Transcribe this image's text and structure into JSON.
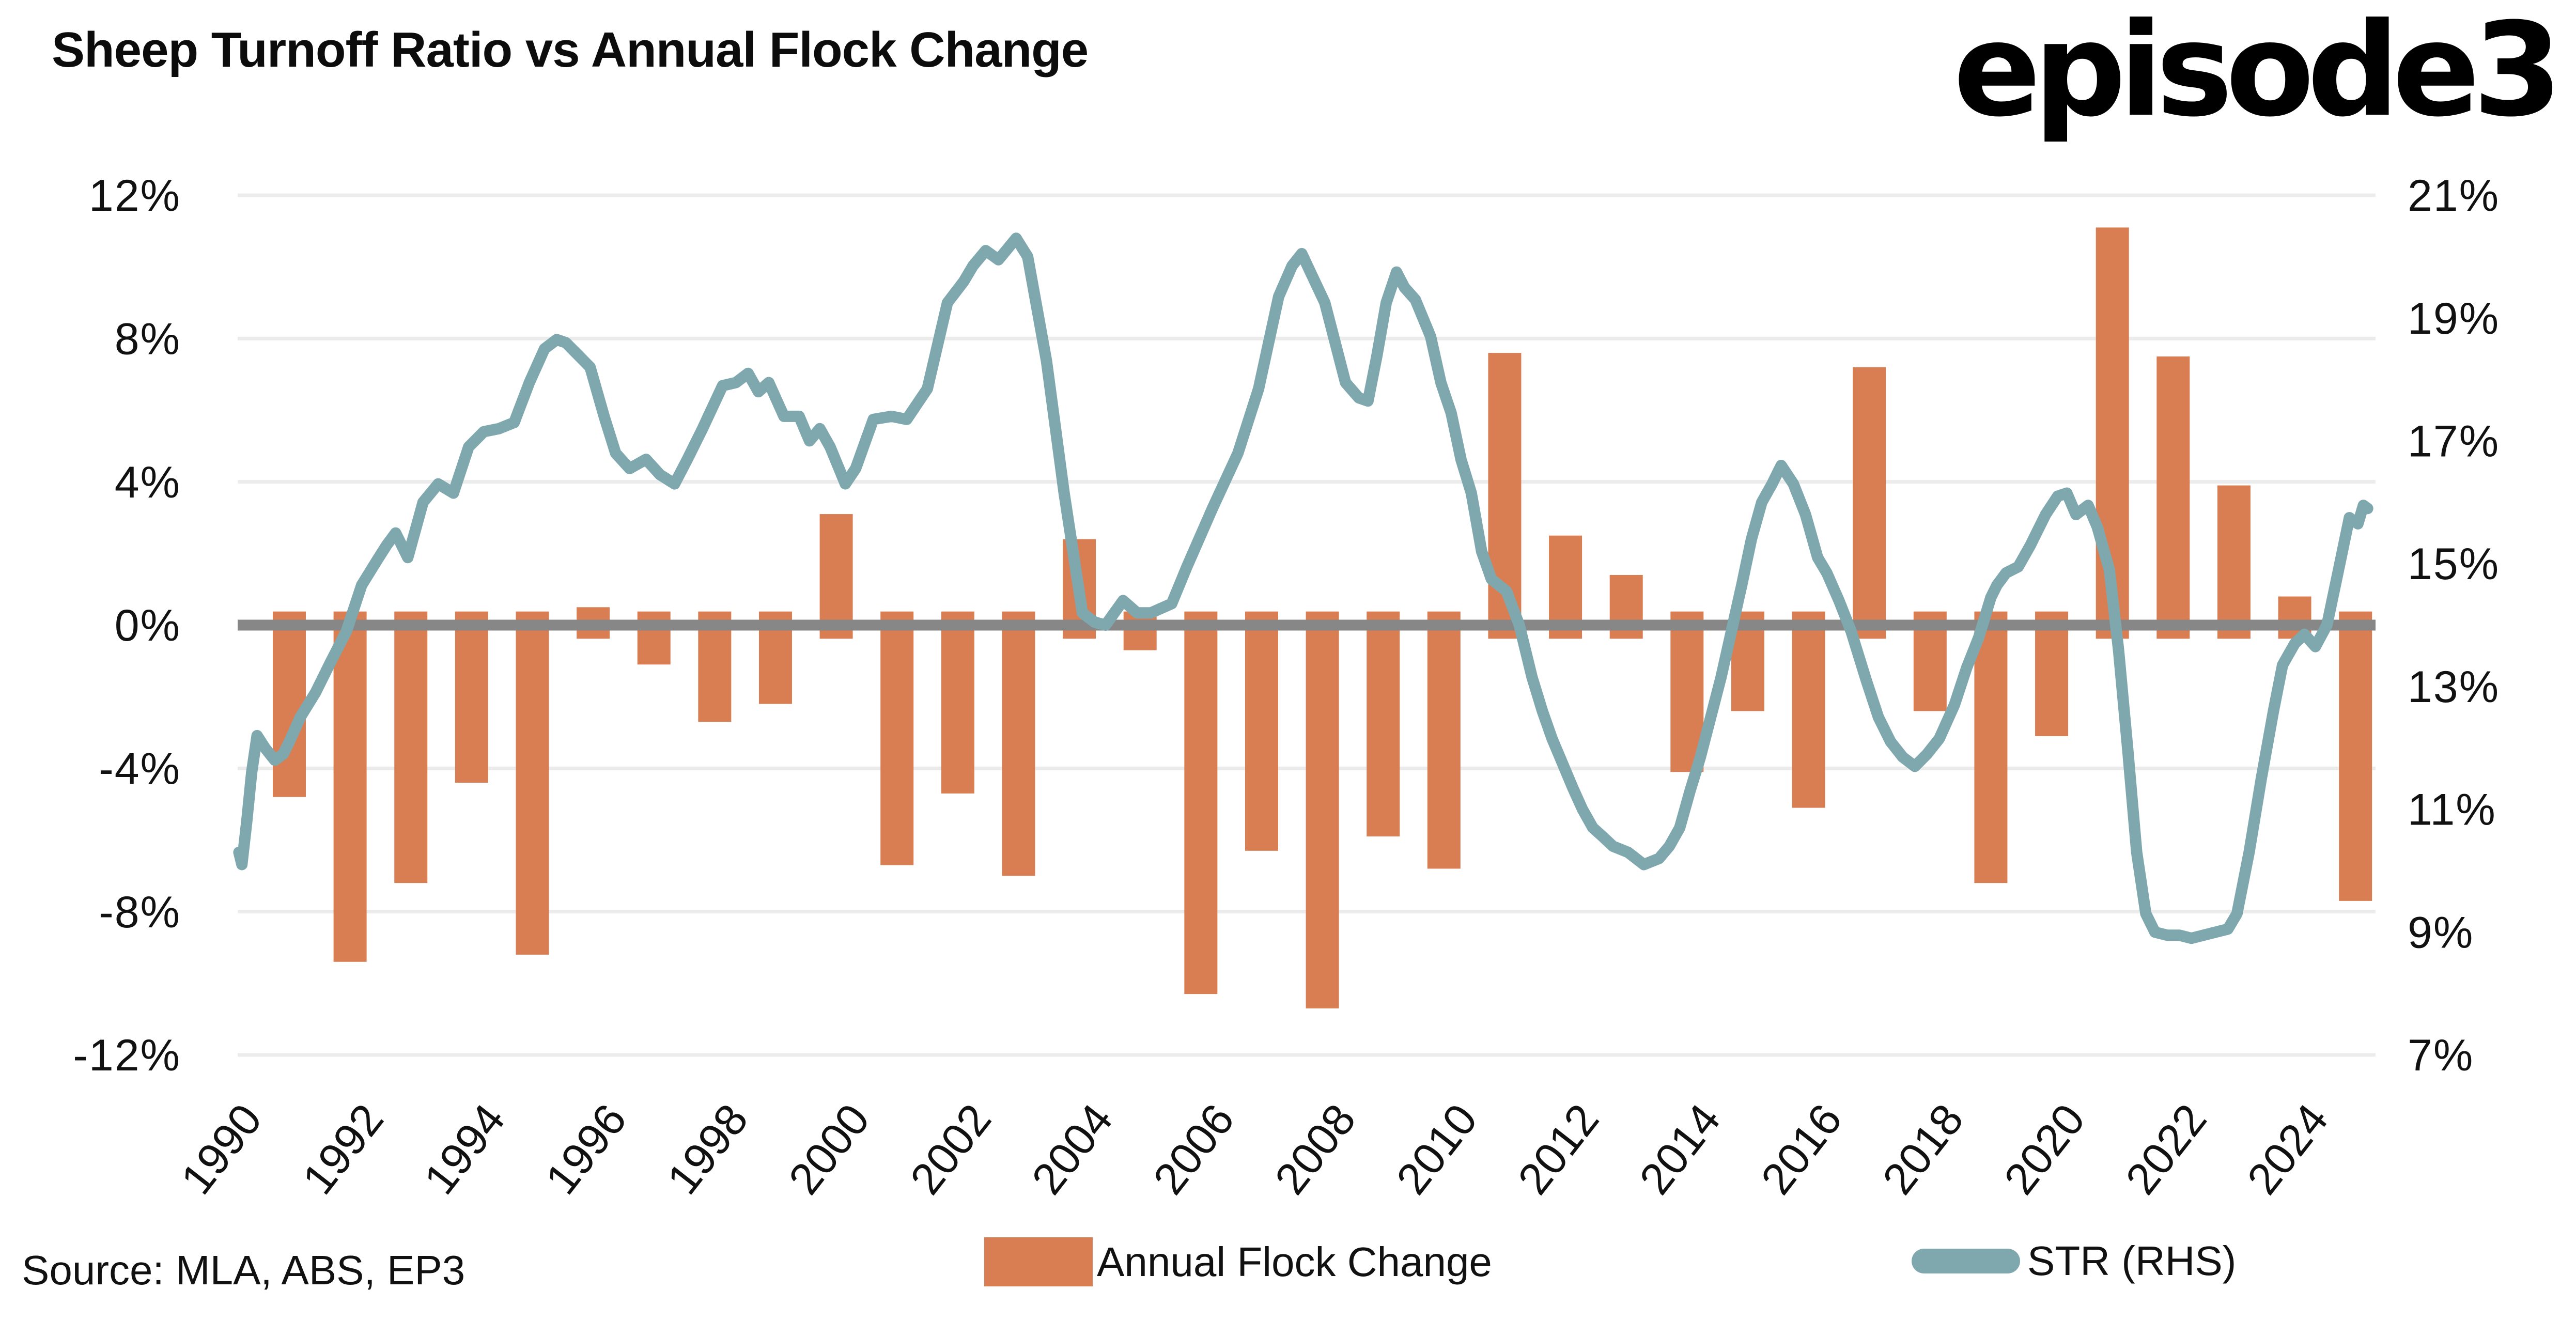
{
  "title": "Sheep Turnoff Ratio vs Annual Flock Change",
  "logo_text": "episode3",
  "source_text": "Source: MLA, ABS, EP3",
  "colors": {
    "bar": "#D97E52",
    "line": "#7FA8AE",
    "zero_line": "#878787",
    "gridline": "#ececec",
    "text": "#111111",
    "background": "#ffffff"
  },
  "legend": {
    "items": [
      {
        "label": "Annual Flock Change",
        "swatch": "bar-swatch",
        "color": "#D97E52"
      },
      {
        "label": "STR (RHS)",
        "swatch": "line-swatch",
        "color": "#7FA8AE"
      }
    ]
  },
  "chart_data": {
    "type": "combo-bar-line",
    "title": "Sheep Turnoff Ratio vs Annual Flock Change",
    "grid": "horizontal-only",
    "legend_position": "bottom",
    "left_axis": {
      "label": "Annual Flock Change",
      "min": -12,
      "max": 12,
      "tick_values": [
        12,
        8,
        4,
        0,
        -4,
        -8,
        -12
      ],
      "tick_labels": [
        "12%",
        "8%",
        "4%",
        "0%",
        "-4%",
        "-8%",
        "-12%"
      ]
    },
    "right_axis": {
      "label": "STR (RHS)",
      "min": 7,
      "max": 21,
      "tick_values": [
        21,
        19,
        17,
        15,
        13,
        11,
        9,
        7
      ],
      "tick_labels": [
        "21%",
        "19%",
        "17%",
        "15%",
        "13%",
        "11%",
        "9%",
        "7%"
      ]
    },
    "x_axis": {
      "domain": [
        1989.15,
        2024.33
      ],
      "tick_years": [
        1990,
        1992,
        1994,
        1996,
        1998,
        2000,
        2002,
        2004,
        2006,
        2008,
        2010,
        2012,
        2014,
        2016,
        2018,
        2020,
        2022,
        2024
      ],
      "tick_offset": -0.42,
      "label_rotation_deg": -52
    },
    "series": [
      {
        "name": "Annual Flock Change",
        "type": "bar",
        "axis": "left",
        "unit": "%",
        "categories": [
          1990,
          1991,
          1992,
          1993,
          1994,
          1995,
          1996,
          1997,
          1998,
          1999,
          2000,
          2001,
          2002,
          2003,
          2004,
          2005,
          2006,
          2007,
          2008,
          2009,
          2010,
          2011,
          2012,
          2013,
          2014,
          2015,
          2016,
          2017,
          2018,
          2019,
          2020,
          2021,
          2022,
          2023,
          2024
        ],
        "values": [
          -4.8,
          -9.4,
          -7.2,
          -4.4,
          -9.2,
          0.5,
          -1.1,
          -2.7,
          -2.2,
          3.1,
          -6.7,
          -4.7,
          -7.0,
          2.4,
          -0.7,
          -10.3,
          -6.3,
          -10.7,
          -5.9,
          -6.8,
          7.6,
          2.5,
          1.4,
          -4.1,
          -2.4,
          -5.1,
          7.2,
          -2.4,
          -7.2,
          -3.1,
          11.1,
          7.5,
          3.9,
          0.8,
          -7.7
        ]
      },
      {
        "name": "STR (RHS)",
        "type": "line",
        "axis": "right",
        "unit": "%",
        "points": [
          [
            1989.17,
            10.3
          ],
          [
            1989.22,
            10.1
          ],
          [
            1989.3,
            10.8
          ],
          [
            1989.38,
            11.6
          ],
          [
            1989.47,
            12.2
          ],
          [
            1989.6,
            12.0
          ],
          [
            1989.76,
            11.8
          ],
          [
            1989.9,
            11.9
          ],
          [
            1990.0,
            12.1
          ],
          [
            1990.18,
            12.5
          ],
          [
            1990.43,
            12.9
          ],
          [
            1990.68,
            13.4
          ],
          [
            1990.94,
            13.9
          ],
          [
            1991.19,
            14.65
          ],
          [
            1991.44,
            15.05
          ],
          [
            1991.6,
            15.3
          ],
          [
            1991.75,
            15.5
          ],
          [
            1991.95,
            15.1
          ],
          [
            1992.2,
            16.0
          ],
          [
            1992.45,
            16.3
          ],
          [
            1992.7,
            16.15
          ],
          [
            1992.95,
            16.9
          ],
          [
            1993.2,
            17.15
          ],
          [
            1993.45,
            17.2
          ],
          [
            1993.7,
            17.3
          ],
          [
            1993.95,
            17.95
          ],
          [
            1994.2,
            18.5
          ],
          [
            1994.4,
            18.65
          ],
          [
            1994.55,
            18.6
          ],
          [
            1994.75,
            18.4
          ],
          [
            1994.95,
            18.2
          ],
          [
            1995.18,
            17.4
          ],
          [
            1995.37,
            16.8
          ],
          [
            1995.6,
            16.55
          ],
          [
            1995.87,
            16.7
          ],
          [
            1996.1,
            16.45
          ],
          [
            1996.34,
            16.3
          ],
          [
            1996.55,
            16.7
          ],
          [
            1996.8,
            17.2
          ],
          [
            1997.13,
            17.9
          ],
          [
            1997.35,
            17.95
          ],
          [
            1997.55,
            18.1
          ],
          [
            1997.72,
            17.8
          ],
          [
            1997.89,
            17.95
          ],
          [
            1998.14,
            17.4
          ],
          [
            1998.39,
            17.4
          ],
          [
            1998.56,
            17.0
          ],
          [
            1998.73,
            17.2
          ],
          [
            1998.9,
            16.9
          ],
          [
            1999.15,
            16.3
          ],
          [
            1999.32,
            16.55
          ],
          [
            1999.61,
            17.35
          ],
          [
            1999.91,
            17.4
          ],
          [
            2000.16,
            17.35
          ],
          [
            2000.5,
            17.85
          ],
          [
            2000.83,
            19.25
          ],
          [
            2001.1,
            19.6
          ],
          [
            2001.25,
            19.85
          ],
          [
            2001.46,
            20.1
          ],
          [
            2001.67,
            19.95
          ],
          [
            2001.96,
            20.3
          ],
          [
            2002.15,
            20.0
          ],
          [
            2002.46,
            18.3
          ],
          [
            2002.75,
            16.15
          ],
          [
            2003.05,
            14.2
          ],
          [
            2003.25,
            14.05
          ],
          [
            2003.43,
            14.0
          ],
          [
            2003.72,
            14.4
          ],
          [
            2003.95,
            14.2
          ],
          [
            2004.18,
            14.2
          ],
          [
            2004.52,
            14.35
          ],
          [
            2004.77,
            14.95
          ],
          [
            2005.19,
            15.9
          ],
          [
            2005.61,
            16.8
          ],
          [
            2005.95,
            17.85
          ],
          [
            2006.28,
            19.35
          ],
          [
            2006.5,
            19.85
          ],
          [
            2006.66,
            20.05
          ],
          [
            2007.04,
            19.25
          ],
          [
            2007.38,
            17.95
          ],
          [
            2007.6,
            17.7
          ],
          [
            2007.75,
            17.65
          ],
          [
            2007.9,
            18.4
          ],
          [
            2008.05,
            19.25
          ],
          [
            2008.22,
            19.75
          ],
          [
            2008.35,
            19.5
          ],
          [
            2008.53,
            19.3
          ],
          [
            2008.78,
            18.7
          ],
          [
            2008.95,
            17.95
          ],
          [
            2009.12,
            17.45
          ],
          [
            2009.28,
            16.7
          ],
          [
            2009.45,
            16.15
          ],
          [
            2009.62,
            15.2
          ],
          [
            2009.78,
            14.75
          ],
          [
            2010.03,
            14.55
          ],
          [
            2010.24,
            14.0
          ],
          [
            2010.45,
            13.15
          ],
          [
            2010.62,
            12.6
          ],
          [
            2010.78,
            12.15
          ],
          [
            2010.95,
            11.75
          ],
          [
            2011.12,
            11.35
          ],
          [
            2011.28,
            11.0
          ],
          [
            2011.45,
            10.7
          ],
          [
            2011.62,
            10.55
          ],
          [
            2011.78,
            10.4
          ],
          [
            2012.03,
            10.3
          ],
          [
            2012.29,
            10.1
          ],
          [
            2012.54,
            10.2
          ],
          [
            2012.71,
            10.4
          ],
          [
            2012.88,
            10.7
          ],
          [
            2013.05,
            11.3
          ],
          [
            2013.22,
            11.85
          ],
          [
            2013.39,
            12.5
          ],
          [
            2013.56,
            13.15
          ],
          [
            2013.73,
            13.9
          ],
          [
            2013.9,
            14.65
          ],
          [
            2014.06,
            15.4
          ],
          [
            2014.23,
            16.0
          ],
          [
            2014.4,
            16.3
          ],
          [
            2014.55,
            16.6
          ],
          [
            2014.75,
            16.3
          ],
          [
            2014.95,
            15.8
          ],
          [
            2015.15,
            15.1
          ],
          [
            2015.3,
            14.85
          ],
          [
            2015.5,
            14.4
          ],
          [
            2015.7,
            13.9
          ],
          [
            2015.95,
            13.1
          ],
          [
            2016.15,
            12.5
          ],
          [
            2016.35,
            12.1
          ],
          [
            2016.55,
            11.85
          ],
          [
            2016.75,
            11.7
          ],
          [
            2016.95,
            11.9
          ],
          [
            2017.15,
            12.15
          ],
          [
            2017.4,
            12.7
          ],
          [
            2017.6,
            13.3
          ],
          [
            2017.8,
            13.8
          ],
          [
            2018.0,
            14.45
          ],
          [
            2018.1,
            14.65
          ],
          [
            2018.25,
            14.85
          ],
          [
            2018.45,
            14.95
          ],
          [
            2018.65,
            15.3
          ],
          [
            2018.9,
            15.8
          ],
          [
            2019.1,
            16.1
          ],
          [
            2019.25,
            16.15
          ],
          [
            2019.4,
            15.8
          ],
          [
            2019.6,
            15.95
          ],
          [
            2019.75,
            15.6
          ],
          [
            2019.95,
            14.9
          ],
          [
            2020.1,
            13.6
          ],
          [
            2020.25,
            12.0
          ],
          [
            2020.4,
            10.3
          ],
          [
            2020.55,
            9.3
          ],
          [
            2020.7,
            9.0
          ],
          [
            2020.9,
            8.95
          ],
          [
            2021.1,
            8.95
          ],
          [
            2021.3,
            8.9
          ],
          [
            2021.5,
            8.95
          ],
          [
            2021.7,
            9.0
          ],
          [
            2021.9,
            9.05
          ],
          [
            2022.05,
            9.3
          ],
          [
            2022.25,
            10.3
          ],
          [
            2022.45,
            11.5
          ],
          [
            2022.65,
            12.6
          ],
          [
            2022.8,
            13.35
          ],
          [
            2023.0,
            13.7
          ],
          [
            2023.16,
            13.85
          ],
          [
            2023.34,
            13.65
          ],
          [
            2023.53,
            14.0
          ],
          [
            2023.7,
            14.8
          ],
          [
            2023.9,
            15.75
          ],
          [
            2024.04,
            15.65
          ],
          [
            2024.13,
            15.95
          ],
          [
            2024.2,
            15.9
          ]
        ]
      }
    ]
  }
}
